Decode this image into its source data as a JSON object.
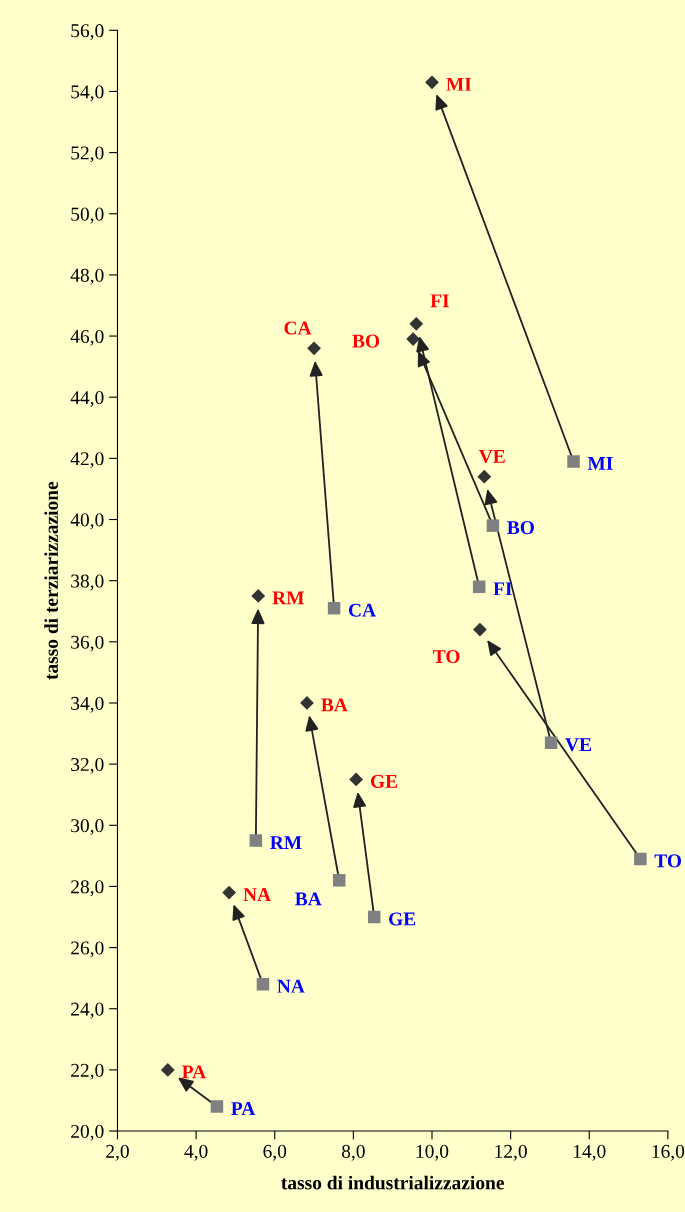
{
  "chart_data": {
    "type": "scatter",
    "xlabel": "tasso di industrializzazione",
    "ylabel": "tasso di terziarizzazione",
    "series": [
      {
        "color": "#333333",
        "marker": "diamond",
        "x": [
          10.0,
          9.6,
          9.52,
          7.0,
          11.33,
          11.22,
          5.58,
          6.82,
          8.07,
          4.84,
          3.28
        ],
        "values": [
          54.3,
          46.4,
          45.9,
          45.6,
          41.4,
          36.4,
          37.5,
          34.0,
          31.5,
          27.8,
          22.0
        ],
        "value_labels": [
          "MI",
          "FI",
          "BO",
          "CA",
          "VE",
          "TO",
          "RM",
          "BA",
          "GE",
          "NA",
          "PA"
        ]
      },
      {
        "color": "#808080",
        "marker": "square",
        "x": [
          13.6,
          11.55,
          11.2,
          7.51,
          15.3,
          13.03,
          5.52,
          7.64,
          8.53,
          5.7,
          4.53
        ],
        "values": [
          41.9,
          39.8,
          37.8,
          37.1,
          28.9,
          32.7,
          29.5,
          28.2,
          27.0,
          24.8,
          20.8
        ],
        "value_labels": [
          "MI",
          "BO",
          "FI",
          "CA",
          "TO",
          "VE",
          "RM",
          "BA",
          "GE",
          "NA",
          "PA"
        ]
      }
    ],
    "xlim": [
      2.0,
      16.0
    ],
    "xticks": [
      {
        "value": 2,
        "label": "2,0"
      },
      {
        "value": 4,
        "label": "4,0"
      },
      {
        "value": 6,
        "label": "6,0"
      },
      {
        "value": 8,
        "label": "8,0"
      },
      {
        "value": 10,
        "label": "10,0"
      },
      {
        "value": 12,
        "label": "12,0"
      },
      {
        "value": 14,
        "label": "14,0"
      },
      {
        "value": 16,
        "label": "16,0"
      }
    ],
    "ylim": [
      20.0,
      56.0
    ],
    "yticks": [
      {
        "value": 20,
        "label": "20,0"
      },
      {
        "value": 22,
        "label": "22,0"
      },
      {
        "value": 24,
        "label": "24,0"
      },
      {
        "value": 26,
        "label": "26,0"
      },
      {
        "value": 28,
        "label": "28,0"
      },
      {
        "value": 30,
        "label": "30,0"
      },
      {
        "value": 32,
        "label": "32,0"
      },
      {
        "value": 34,
        "label": "34,0"
      },
      {
        "value": 36,
        "label": "36,0"
      },
      {
        "value": 38,
        "label": "38,0"
      },
      {
        "value": 40,
        "label": "40,0"
      },
      {
        "value": 42,
        "label": "42,0"
      },
      {
        "value": 44,
        "label": "44,0"
      },
      {
        "value": 46,
        "label": "46,0"
      },
      {
        "value": 48,
        "label": "48,0"
      },
      {
        "value": 50,
        "label": "50,0"
      },
      {
        "value": 52,
        "label": "52,0"
      },
      {
        "value": 54,
        "label": "54,0"
      },
      {
        "value": 56,
        "label": "56,0"
      }
    ],
    "grid": false,
    "legend": false
  }
}
